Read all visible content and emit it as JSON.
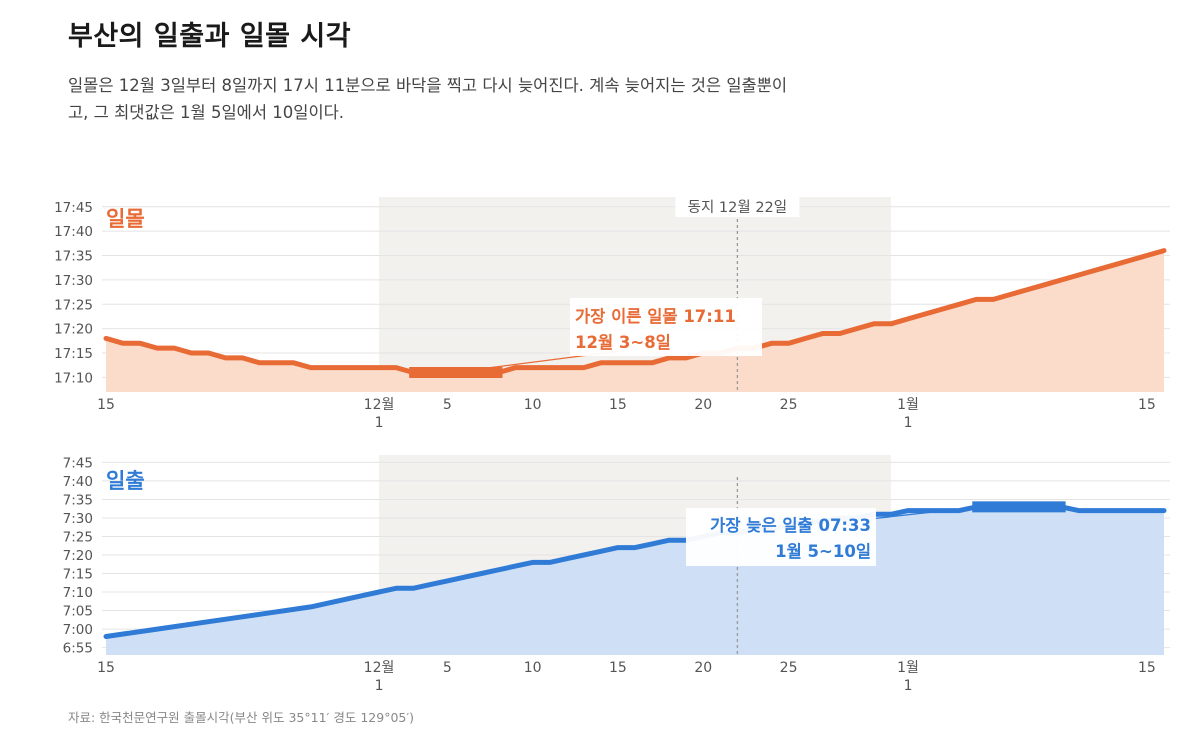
{
  "title": "부산의 일출과 일몰 시각",
  "subtitle": "일몰은 12월 3일부터 8일까지 17시 11분으로 바닥을 찍고 다시 늦어진다. 계속 늦어지는 것은 일출뿐이고, 그 최댓값은 1월 5일에서 10일이다.",
  "source": "자료: 한국천문연구원 출몰시각(부산 위도 35°11′ 경도 129°05′)",
  "colors": {
    "sunset": "#e86a35",
    "sunset_fill": "#fbdccb",
    "sunrise": "#2f7bd6",
    "sunrise_fill": "#cfe0f6",
    "band": "#f3f1ee",
    "grid": "#e4e4e4"
  },
  "annotations": {
    "solstice_label": "동지 12월 22일",
    "sunset_min_line1": "가장 이른 일몰 17:11",
    "sunset_min_line2": "12월 3~8일",
    "sunrise_max_line1": "가장 늦은 일출 07:33",
    "sunrise_max_line2": "1월 5~10일"
  },
  "x_ticks": [
    {
      "date": "2023-11-15",
      "label": "15"
    },
    {
      "date": "2023-12-01",
      "label": "12월",
      "label2": "1"
    },
    {
      "date": "2023-12-05",
      "label": "5"
    },
    {
      "date": "2023-12-10",
      "label": "10"
    },
    {
      "date": "2023-12-15",
      "label": "15"
    },
    {
      "date": "2023-12-20",
      "label": "20"
    },
    {
      "date": "2023-12-25",
      "label": "25"
    },
    {
      "date": "2024-01-01",
      "label": "1월",
      "label2": "1"
    },
    {
      "date": "2024-01-15",
      "label": "15"
    }
  ],
  "chart_data": [
    {
      "type": "area",
      "series_label": "일몰",
      "x_range": [
        "2023-11-15",
        "2024-01-16"
      ],
      "y_range": [
        "17:07",
        "17:47"
      ],
      "y_ticks": [
        "17:10",
        "17:15",
        "17:20",
        "17:25",
        "17:30",
        "17:35",
        "17:40",
        "17:45"
      ],
      "shaded_period": [
        "2023-12-01",
        "2023-12-31"
      ],
      "reference_line": {
        "date": "2023-12-22",
        "label": "동지 12월 22일"
      },
      "highlight": {
        "from": "2023-12-03",
        "to": "2023-12-08",
        "value": "17:11"
      },
      "points": [
        {
          "date": "2023-11-15",
          "value": "17:18"
        },
        {
          "date": "2023-11-16",
          "value": "17:17"
        },
        {
          "date": "2023-11-17",
          "value": "17:17"
        },
        {
          "date": "2023-11-18",
          "value": "17:16"
        },
        {
          "date": "2023-11-19",
          "value": "17:16"
        },
        {
          "date": "2023-11-20",
          "value": "17:15"
        },
        {
          "date": "2023-11-21",
          "value": "17:15"
        },
        {
          "date": "2023-11-22",
          "value": "17:14"
        },
        {
          "date": "2023-11-23",
          "value": "17:14"
        },
        {
          "date": "2023-11-24",
          "value": "17:13"
        },
        {
          "date": "2023-11-25",
          "value": "17:13"
        },
        {
          "date": "2023-11-26",
          "value": "17:13"
        },
        {
          "date": "2023-11-27",
          "value": "17:12"
        },
        {
          "date": "2023-11-28",
          "value": "17:12"
        },
        {
          "date": "2023-11-29",
          "value": "17:12"
        },
        {
          "date": "2023-11-30",
          "value": "17:12"
        },
        {
          "date": "2023-12-01",
          "value": "17:12"
        },
        {
          "date": "2023-12-02",
          "value": "17:12"
        },
        {
          "date": "2023-12-03",
          "value": "17:11"
        },
        {
          "date": "2023-12-04",
          "value": "17:11"
        },
        {
          "date": "2023-12-05",
          "value": "17:11"
        },
        {
          "date": "2023-12-06",
          "value": "17:11"
        },
        {
          "date": "2023-12-07",
          "value": "17:11"
        },
        {
          "date": "2023-12-08",
          "value": "17:11"
        },
        {
          "date": "2023-12-09",
          "value": "17:12"
        },
        {
          "date": "2023-12-10",
          "value": "17:12"
        },
        {
          "date": "2023-12-11",
          "value": "17:12"
        },
        {
          "date": "2023-12-12",
          "value": "17:12"
        },
        {
          "date": "2023-12-13",
          "value": "17:12"
        },
        {
          "date": "2023-12-14",
          "value": "17:13"
        },
        {
          "date": "2023-12-15",
          "value": "17:13"
        },
        {
          "date": "2023-12-16",
          "value": "17:13"
        },
        {
          "date": "2023-12-17",
          "value": "17:13"
        },
        {
          "date": "2023-12-18",
          "value": "17:14"
        },
        {
          "date": "2023-12-19",
          "value": "17:14"
        },
        {
          "date": "2023-12-20",
          "value": "17:15"
        },
        {
          "date": "2023-12-21",
          "value": "17:15"
        },
        {
          "date": "2023-12-22",
          "value": "17:16"
        },
        {
          "date": "2023-12-23",
          "value": "17:16"
        },
        {
          "date": "2023-12-24",
          "value": "17:17"
        },
        {
          "date": "2023-12-25",
          "value": "17:17"
        },
        {
          "date": "2023-12-26",
          "value": "17:18"
        },
        {
          "date": "2023-12-27",
          "value": "17:19"
        },
        {
          "date": "2023-12-28",
          "value": "17:19"
        },
        {
          "date": "2023-12-29",
          "value": "17:20"
        },
        {
          "date": "2023-12-30",
          "value": "17:21"
        },
        {
          "date": "2023-12-31",
          "value": "17:21"
        },
        {
          "date": "2024-01-01",
          "value": "17:22"
        },
        {
          "date": "2024-01-02",
          "value": "17:23"
        },
        {
          "date": "2024-01-03",
          "value": "17:24"
        },
        {
          "date": "2024-01-04",
          "value": "17:25"
        },
        {
          "date": "2024-01-05",
          "value": "17:26"
        },
        {
          "date": "2024-01-06",
          "value": "17:26"
        },
        {
          "date": "2024-01-07",
          "value": "17:27"
        },
        {
          "date": "2024-01-08",
          "value": "17:28"
        },
        {
          "date": "2024-01-09",
          "value": "17:29"
        },
        {
          "date": "2024-01-10",
          "value": "17:30"
        },
        {
          "date": "2024-01-11",
          "value": "17:31"
        },
        {
          "date": "2024-01-12",
          "value": "17:32"
        },
        {
          "date": "2024-01-13",
          "value": "17:33"
        },
        {
          "date": "2024-01-14",
          "value": "17:34"
        },
        {
          "date": "2024-01-15",
          "value": "17:35"
        },
        {
          "date": "2024-01-16",
          "value": "17:36"
        }
      ]
    },
    {
      "type": "area",
      "series_label": "일출",
      "x_range": [
        "2023-11-15",
        "2024-01-16"
      ],
      "y_range": [
        "06:53",
        "07:47"
      ],
      "y_ticks": [
        "6:55",
        "7:00",
        "7:05",
        "7:10",
        "7:15",
        "7:20",
        "7:25",
        "7:30",
        "7:35",
        "7:40",
        "7:45"
      ],
      "shaded_period": [
        "2023-12-01",
        "2023-12-31"
      ],
      "reference_line": {
        "date": "2023-12-22",
        "label": "동지 12월 22일"
      },
      "highlight": {
        "from": "2024-01-05",
        "to": "2024-01-10",
        "value": "07:33"
      },
      "points": [
        {
          "date": "2023-11-15",
          "value": "06:58"
        },
        {
          "date": "2023-11-18",
          "value": "07:00"
        },
        {
          "date": "2023-11-21",
          "value": "07:02"
        },
        {
          "date": "2023-11-24",
          "value": "07:04"
        },
        {
          "date": "2023-11-27",
          "value": "07:06"
        },
        {
          "date": "2023-11-30",
          "value": "07:09"
        },
        {
          "date": "2023-12-01",
          "value": "07:10"
        },
        {
          "date": "2023-12-02",
          "value": "07:11"
        },
        {
          "date": "2023-12-03",
          "value": "07:11"
        },
        {
          "date": "2023-12-04",
          "value": "07:12"
        },
        {
          "date": "2023-12-05",
          "value": "07:13"
        },
        {
          "date": "2023-12-06",
          "value": "07:14"
        },
        {
          "date": "2023-12-07",
          "value": "07:15"
        },
        {
          "date": "2023-12-08",
          "value": "07:16"
        },
        {
          "date": "2023-12-09",
          "value": "07:17"
        },
        {
          "date": "2023-12-10",
          "value": "07:18"
        },
        {
          "date": "2023-12-11",
          "value": "07:18"
        },
        {
          "date": "2023-12-12",
          "value": "07:19"
        },
        {
          "date": "2023-12-13",
          "value": "07:20"
        },
        {
          "date": "2023-12-14",
          "value": "07:21"
        },
        {
          "date": "2023-12-15",
          "value": "07:22"
        },
        {
          "date": "2023-12-16",
          "value": "07:22"
        },
        {
          "date": "2023-12-17",
          "value": "07:23"
        },
        {
          "date": "2023-12-18",
          "value": "07:24"
        },
        {
          "date": "2023-12-19",
          "value": "07:24"
        },
        {
          "date": "2023-12-20",
          "value": "07:25"
        },
        {
          "date": "2023-12-21",
          "value": "07:26"
        },
        {
          "date": "2023-12-22",
          "value": "07:26"
        },
        {
          "date": "2023-12-23",
          "value": "07:27"
        },
        {
          "date": "2023-12-24",
          "value": "07:27"
        },
        {
          "date": "2023-12-25",
          "value": "07:28"
        },
        {
          "date": "2023-12-26",
          "value": "07:29"
        },
        {
          "date": "2023-12-27",
          "value": "07:29"
        },
        {
          "date": "2023-12-28",
          "value": "07:30"
        },
        {
          "date": "2023-12-29",
          "value": "07:30"
        },
        {
          "date": "2023-12-30",
          "value": "07:31"
        },
        {
          "date": "2023-12-31",
          "value": "07:31"
        },
        {
          "date": "2024-01-01",
          "value": "07:32"
        },
        {
          "date": "2024-01-02",
          "value": "07:32"
        },
        {
          "date": "2024-01-03",
          "value": "07:32"
        },
        {
          "date": "2024-01-04",
          "value": "07:32"
        },
        {
          "date": "2024-01-05",
          "value": "07:33"
        },
        {
          "date": "2024-01-06",
          "value": "07:33"
        },
        {
          "date": "2024-01-07",
          "value": "07:33"
        },
        {
          "date": "2024-01-08",
          "value": "07:33"
        },
        {
          "date": "2024-01-09",
          "value": "07:33"
        },
        {
          "date": "2024-01-10",
          "value": "07:33"
        },
        {
          "date": "2024-01-11",
          "value": "07:32"
        },
        {
          "date": "2024-01-12",
          "value": "07:32"
        },
        {
          "date": "2024-01-13",
          "value": "07:32"
        },
        {
          "date": "2024-01-14",
          "value": "07:32"
        },
        {
          "date": "2024-01-15",
          "value": "07:32"
        },
        {
          "date": "2024-01-16",
          "value": "07:32"
        }
      ]
    }
  ]
}
